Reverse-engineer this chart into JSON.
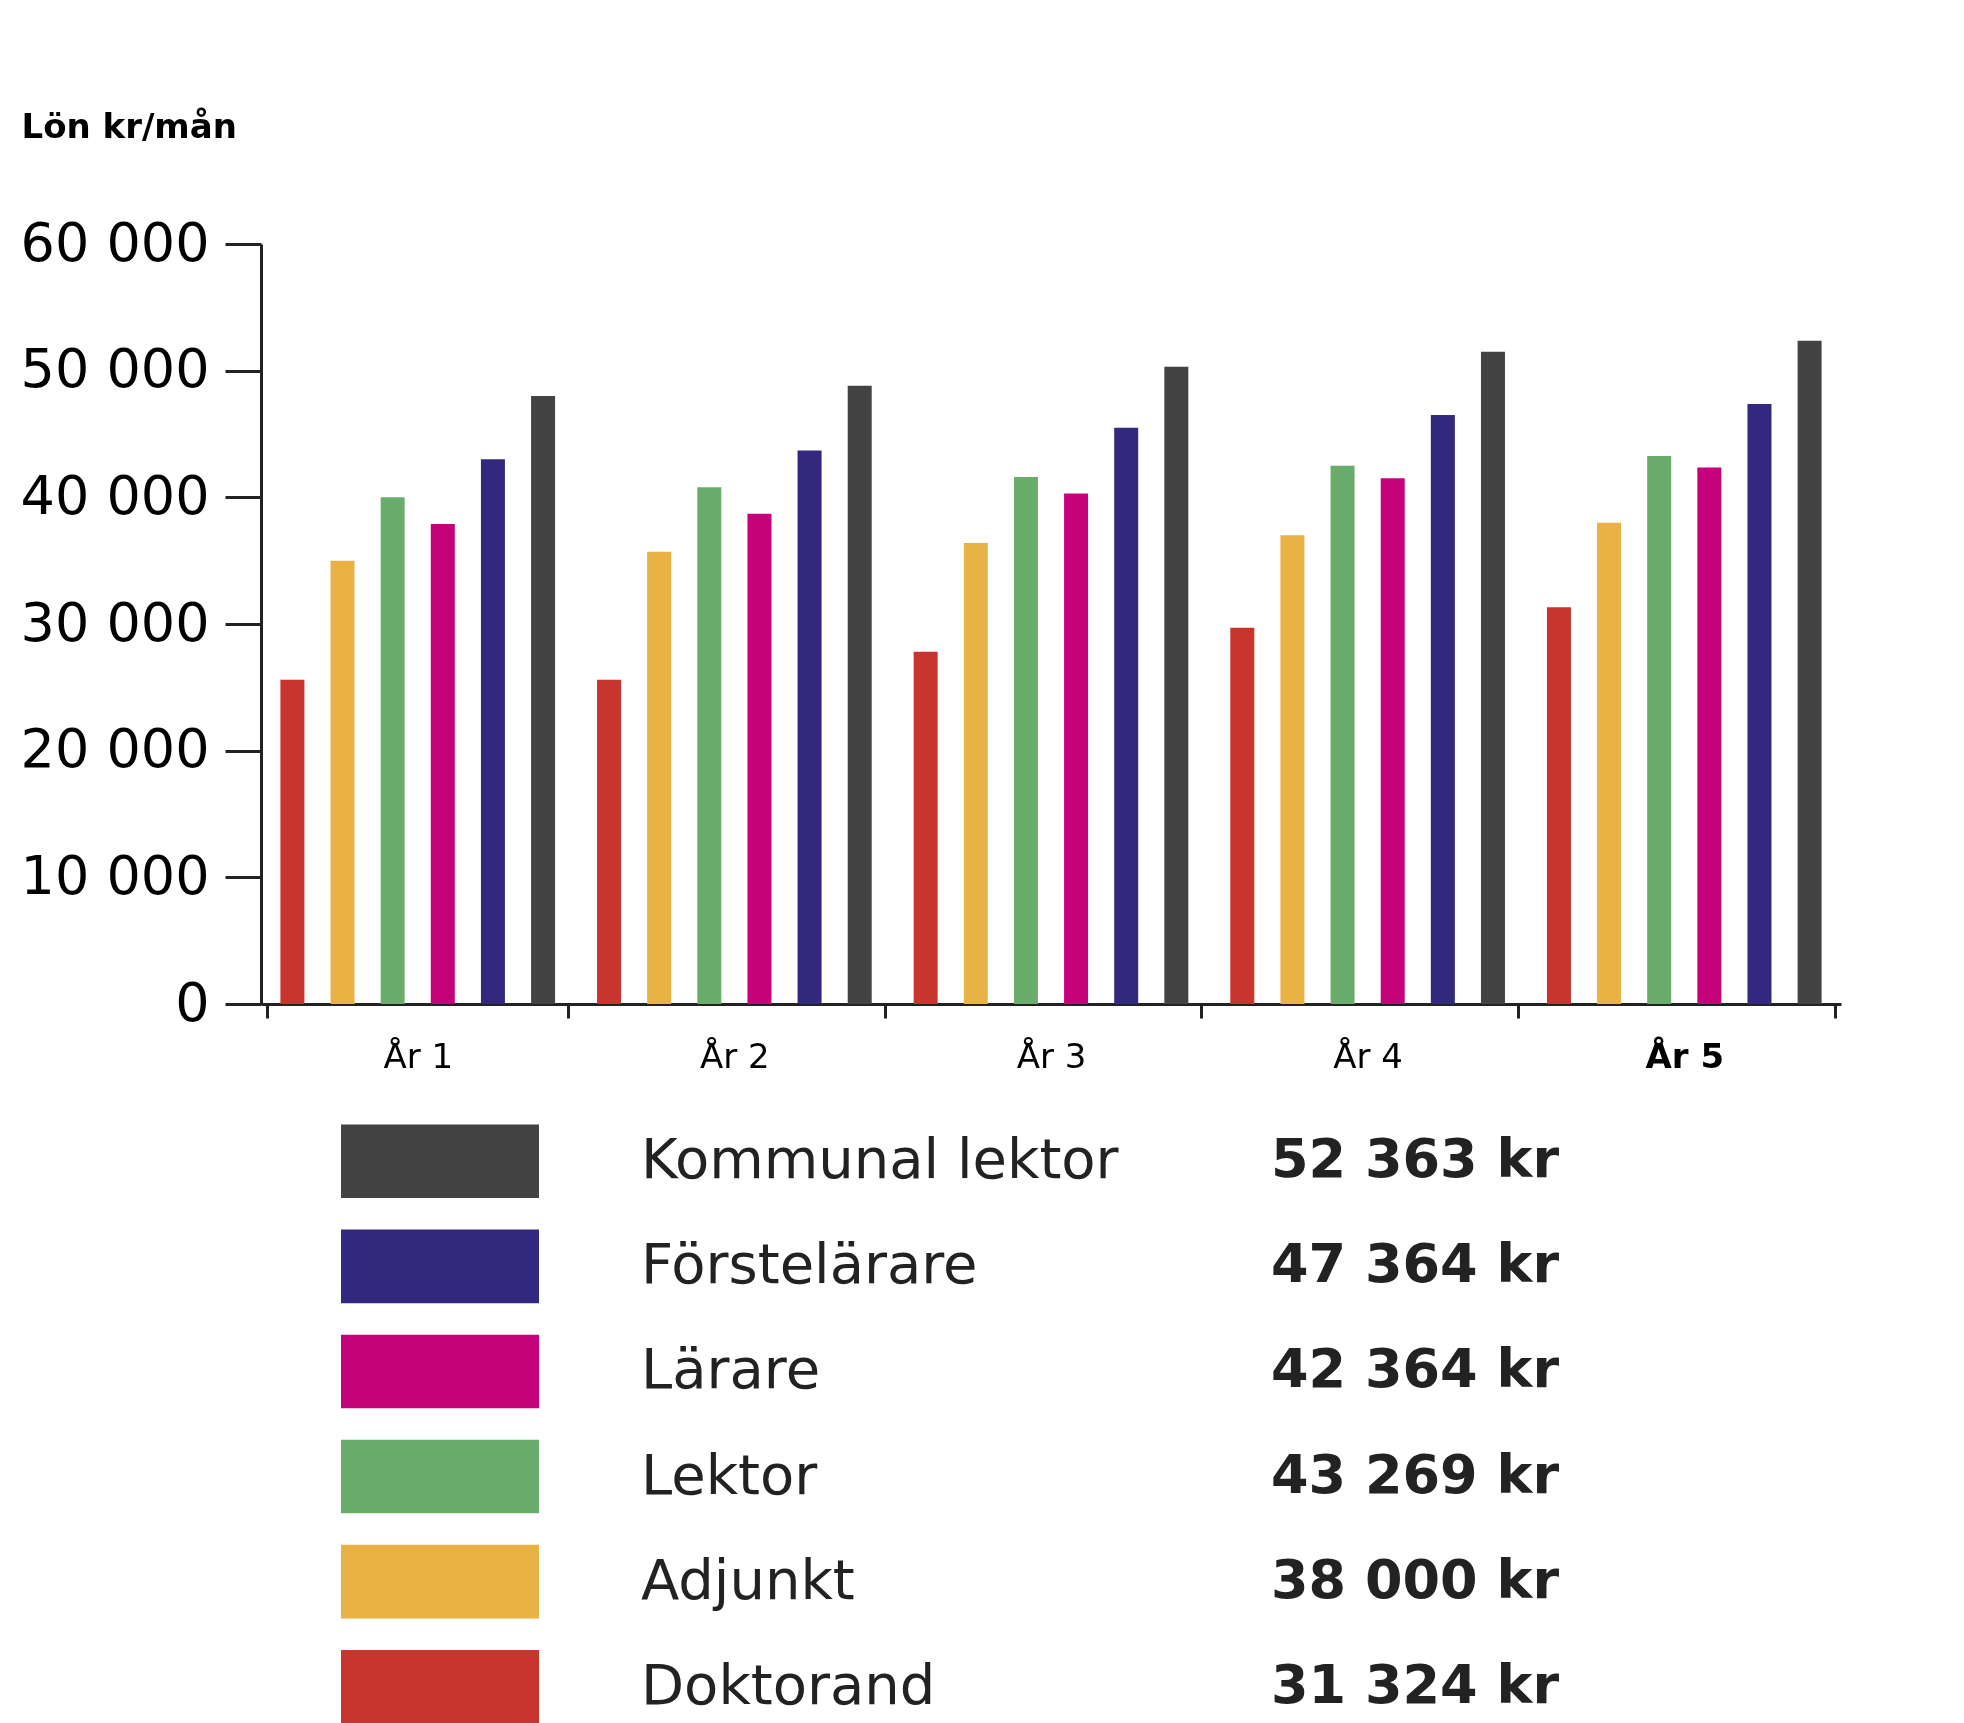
{
  "chart_data": {
    "type": "bar",
    "ylabel": "Lön kr/mån",
    "categories": [
      "År 1",
      "År 2",
      "År 3",
      "År 4",
      "År 5"
    ],
    "series": [
      {
        "name": "Doktorand",
        "color": "#c8352e",
        "values": [
          25600,
          25600,
          27800,
          29700,
          31324
        ]
      },
      {
        "name": "Adjunkt",
        "color": "#e8b245",
        "values": [
          35000,
          35700,
          36400,
          37000,
          38000
        ]
      },
      {
        "name": "Lektor",
        "color": "#6aac6c",
        "values": [
          40000,
          40800,
          41600,
          42500,
          43269
        ]
      },
      {
        "name": "Lärare",
        "color": "#c5027a",
        "values": [
          37900,
          38700,
          40300,
          41500,
          42364
        ]
      },
      {
        "name": "Förstelärare",
        "color": "#32287d",
        "values": [
          43000,
          43700,
          45500,
          46500,
          47364
        ]
      },
      {
        "name": "Kommunal lektor",
        "color": "#434343",
        "values": [
          48000,
          48800,
          50300,
          51500,
          52363
        ]
      }
    ],
    "ylim": [
      0,
      60000
    ],
    "yticks": [
      {
        "value": 0,
        "label": "0"
      },
      {
        "value": 10000,
        "label": "10 000"
      },
      {
        "value": 20000,
        "label": "20 000"
      },
      {
        "value": 30000,
        "label": "30 000"
      },
      {
        "value": 40000,
        "label": "40 000"
      },
      {
        "value": 50000,
        "label": "50 000"
      },
      {
        "value": 60000,
        "label": "60 000"
      }
    ],
    "annotations": [
      "52 363 kr",
      "47 364 kr",
      "42 364 kr",
      "43 269 kr",
      "38 000 kr",
      "31 324 kr"
    ],
    "grid": false,
    "legend": "bottom"
  }
}
